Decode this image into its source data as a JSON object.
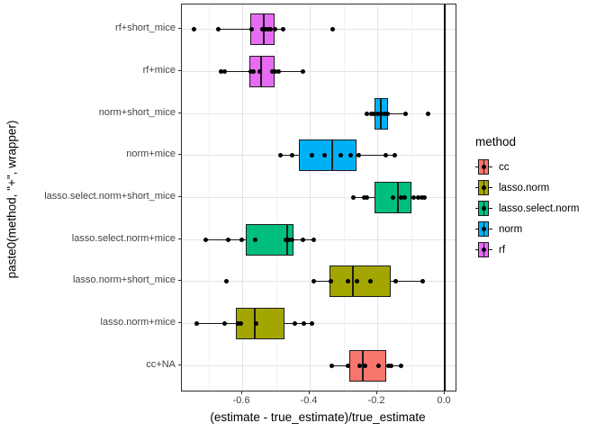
{
  "chart_data": {
    "type": "boxplot",
    "orientation": "horizontal",
    "xlabel": "(estimate - true_estimate)/true_estimate",
    "ylabel": "paste0(method, \"+\", wrapper)",
    "xlim": [
      -0.779,
      0.032
    ],
    "x_major_ticks": [
      -0.6,
      -0.4,
      -0.2,
      0.0
    ],
    "x_tick_labels": [
      "-0.6",
      "-0.4",
      "-0.2",
      "0.0"
    ],
    "x_minor_ticks": [
      -0.7,
      -0.5,
      -0.3,
      -0.1
    ],
    "vline_x": 0,
    "grid": true,
    "method_colors": {
      "cc": "#F8766D",
      "lasso.norm": "#A3A500",
      "lasso.select.norm": "#00BF7D",
      "norm": "#00B0F6",
      "rf": "#E76BF3"
    },
    "legend": {
      "title": "method",
      "position": "right",
      "entries": [
        {
          "label": "cc",
          "color": "#F8766D"
        },
        {
          "label": "lasso.norm",
          "color": "#A3A500"
        },
        {
          "label": "lasso.select.norm",
          "color": "#00BF7D"
        },
        {
          "label": "norm",
          "color": "#00B0F6"
        },
        {
          "label": "rf",
          "color": "#E76BF3"
        }
      ]
    },
    "rows": [
      {
        "category": "rf+short_mice",
        "method": "rf",
        "whisker_lo": -0.671,
        "q1": -0.576,
        "median": -0.535,
        "q3": -0.504,
        "whisker_hi": -0.478,
        "points": [
          -0.744,
          -0.671,
          -0.573,
          -0.54,
          -0.531,
          -0.523,
          -0.515,
          -0.504,
          -0.478,
          -0.333
        ]
      },
      {
        "category": "rf+mice",
        "method": "rf",
        "whisker_lo": -0.664,
        "q1": -0.578,
        "median": -0.545,
        "q3": -0.504,
        "whisker_hi": -0.42,
        "points": [
          -0.664,
          -0.651,
          -0.575,
          -0.566,
          -0.548,
          -0.511,
          -0.502,
          -0.493,
          -0.42
        ]
      },
      {
        "category": "norm+short_mice",
        "method": "norm",
        "whisker_lo": -0.232,
        "q1": -0.208,
        "median": -0.189,
        "q3": -0.167,
        "whisker_hi": -0.115,
        "points": [
          -0.231,
          -0.218,
          -0.209,
          -0.2,
          -0.189,
          -0.178,
          -0.169,
          -0.115,
          -0.049
        ]
      },
      {
        "category": "norm+mice",
        "method": "norm",
        "whisker_lo": -0.488,
        "q1": -0.433,
        "median": -0.333,
        "q3": -0.262,
        "whisker_hi": -0.149,
        "points": [
          -0.488,
          -0.453,
          -0.393,
          -0.357,
          -0.309,
          -0.28,
          -0.256,
          -0.175,
          -0.149
        ]
      },
      {
        "category": "lasso.select.norm+short_mice",
        "method": "lasso.select.norm",
        "whisker_lo": -0.271,
        "q1": -0.209,
        "median": -0.138,
        "q3": -0.099,
        "whisker_hi": -0.059,
        "points": [
          -0.271,
          -0.24,
          -0.231,
          -0.154,
          -0.129,
          -0.12,
          -0.091,
          -0.078,
          -0.068,
          -0.059
        ]
      },
      {
        "category": "lasso.select.norm+mice",
        "method": "lasso.select.norm",
        "whisker_lo": -0.708,
        "q1": -0.589,
        "median": -0.468,
        "q3": -0.449,
        "whisker_hi": -0.388,
        "points": [
          -0.708,
          -0.642,
          -0.602,
          -0.562,
          -0.471,
          -0.462,
          -0.453,
          -0.42,
          -0.388
        ]
      },
      {
        "category": "lasso.norm+short_mice",
        "method": "lasso.norm",
        "whisker_lo": -0.389,
        "q1": -0.342,
        "median": -0.273,
        "q3": -0.16,
        "whisker_hi": -0.065,
        "points": [
          -0.647,
          -0.389,
          -0.338,
          -0.287,
          -0.26,
          -0.22,
          -0.145,
          -0.065
        ]
      },
      {
        "category": "lasso.norm+mice",
        "method": "lasso.norm",
        "whisker_lo": -0.736,
        "q1": -0.618,
        "median": -0.562,
        "q3": -0.474,
        "whisker_hi": -0.393,
        "points": [
          -0.736,
          -0.653,
          -0.612,
          -0.605,
          -0.56,
          -0.444,
          -0.418,
          -0.393
        ]
      },
      {
        "category": "cc+NA",
        "method": "cc",
        "whisker_lo": -0.335,
        "q1": -0.284,
        "median": -0.244,
        "q3": -0.173,
        "whisker_hi": -0.128,
        "points": [
          -0.335,
          -0.286,
          -0.251,
          -0.235,
          -0.195,
          -0.167,
          -0.158,
          -0.129
        ]
      }
    ]
  }
}
